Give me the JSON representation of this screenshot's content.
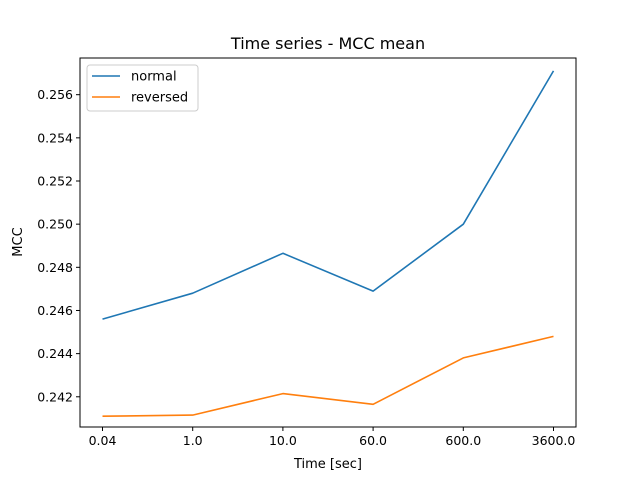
{
  "chart_data": {
    "type": "line",
    "title": "Time series - MCC mean",
    "xlabel": "Time [sec]",
    "ylabel": "MCC",
    "categories": [
      "0.04",
      "1.0",
      "10.0",
      "60.0",
      "600.0",
      "3600.0"
    ],
    "yticks": [
      "0.242",
      "0.244",
      "0.246",
      "0.248",
      "0.250",
      "0.252",
      "0.254",
      "0.256"
    ],
    "ylim": [
      0.2406,
      0.2577
    ],
    "grid": false,
    "legend_position": "top-left",
    "series": [
      {
        "name": "normal",
        "color": "#1f77b4",
        "values": [
          0.2456,
          0.2468,
          0.24865,
          0.2469,
          0.25,
          0.2571
        ]
      },
      {
        "name": "reversed",
        "color": "#ff7f0e",
        "values": [
          0.2411,
          0.24115,
          0.24215,
          0.24165,
          0.2438,
          0.2448
        ]
      }
    ]
  }
}
